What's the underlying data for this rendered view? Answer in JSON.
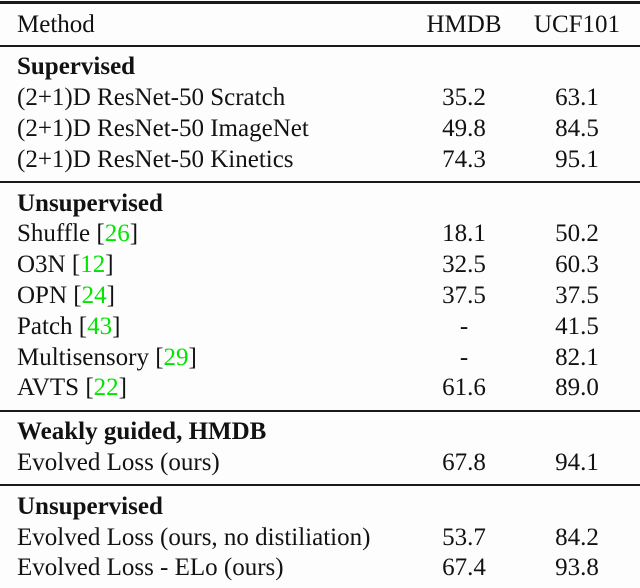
{
  "table": {
    "columns": [
      "Method",
      "HMDB",
      "UCF101"
    ],
    "sections": [
      {
        "header": "Supervised",
        "rows": [
          {
            "method": "(2+1)D ResNet-50 Scratch",
            "cite": "",
            "hmdb": "35.2",
            "ucf101": "63.1"
          },
          {
            "method": "(2+1)D ResNet-50 ImageNet",
            "cite": "",
            "hmdb": "49.8",
            "ucf101": "84.5"
          },
          {
            "method": "(2+1)D ResNet-50 Kinetics",
            "cite": "",
            "hmdb": "74.3",
            "ucf101": "95.1"
          }
        ]
      },
      {
        "header": "Unsupervised",
        "rows": [
          {
            "method": "Shuffle",
            "cite": "26",
            "hmdb": "18.1",
            "ucf101": "50.2"
          },
          {
            "method": "O3N",
            "cite": "12",
            "hmdb": "32.5",
            "ucf101": "60.3"
          },
          {
            "method": "OPN",
            "cite": "24",
            "hmdb": "37.5",
            "ucf101": "37.5"
          },
          {
            "method": "Patch",
            "cite": "43",
            "hmdb": "-",
            "ucf101": "41.5"
          },
          {
            "method": "Multisensory",
            "cite": "29",
            "hmdb": "-",
            "ucf101": "82.1"
          },
          {
            "method": "AVTS",
            "cite": "22",
            "hmdb": "61.6",
            "ucf101": "89.0"
          }
        ]
      },
      {
        "header": "Weakly guided, HMDB",
        "rows": [
          {
            "method": "Evolved Loss (ours)",
            "cite": "",
            "hmdb": "67.8",
            "ucf101": "94.1"
          }
        ]
      },
      {
        "header": "Unsupervised",
        "rows": [
          {
            "method": "Evolved Loss (ours, no distiliation)",
            "cite": "",
            "hmdb": "53.7",
            "ucf101": "84.2"
          },
          {
            "method": "Evolved Loss - ELo (ours)",
            "cite": "",
            "hmdb": "67.4",
            "ucf101": "93.8"
          }
        ]
      }
    ]
  },
  "colors": {
    "citation_green": "#00e400",
    "text": "#121212",
    "rule": "#1a1a1a",
    "background": "#fdfdfd"
  }
}
